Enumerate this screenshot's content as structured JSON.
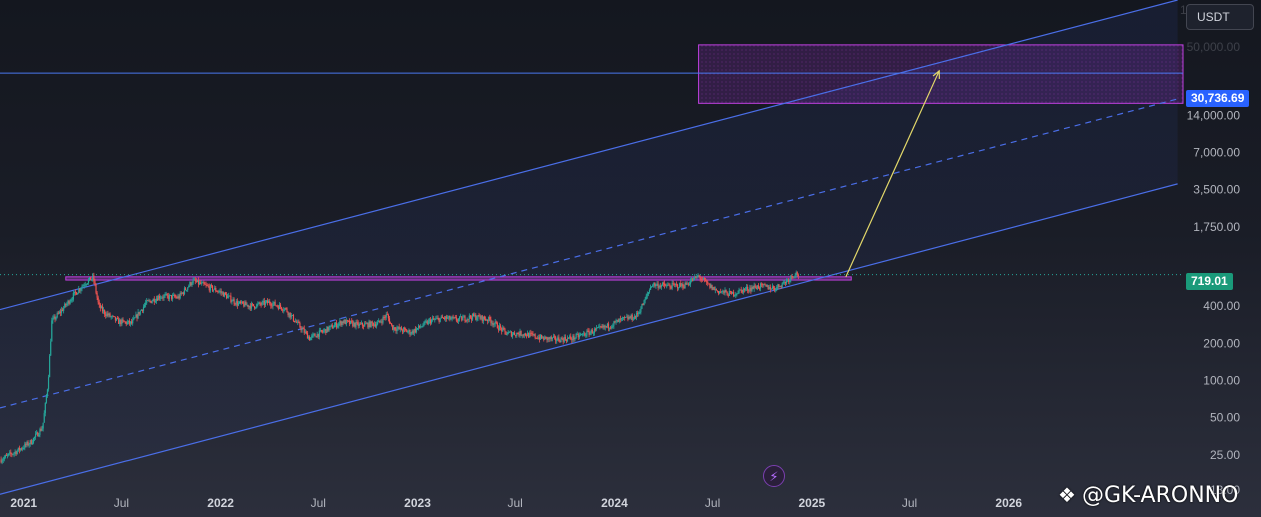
{
  "chart_data": {
    "type": "candlestick",
    "title": "",
    "currency": "USDT",
    "y_scale": "log",
    "ylim": [
      13,
      120000
    ],
    "xlim": [
      "2020-11-18",
      "2026-11-20"
    ],
    "x_tick_labels": [
      {
        "label": "2021",
        "date": "2021-01-01",
        "major": true
      },
      {
        "label": "Jul",
        "date": "2021-07-01",
        "major": false
      },
      {
        "label": "2022",
        "date": "2022-01-01",
        "major": true
      },
      {
        "label": "Jul",
        "date": "2022-07-01",
        "major": false
      },
      {
        "label": "2023",
        "date": "2023-01-01",
        "major": true
      },
      {
        "label": "Jul",
        "date": "2023-07-01",
        "major": false
      },
      {
        "label": "2024",
        "date": "2024-01-01",
        "major": true
      },
      {
        "label": "Jul",
        "date": "2024-07-01",
        "major": false
      },
      {
        "label": "2025",
        "date": "2025-01-01",
        "major": true
      },
      {
        "label": "Jul",
        "date": "2025-07-01",
        "major": false
      },
      {
        "label": "2026",
        "date": "2026-01-01",
        "major": true
      }
    ],
    "y_tick_labels": [
      {
        "label": "100,000.00",
        "value": 100000,
        "faded": true
      },
      {
        "label": "50,000.00",
        "value": 50000,
        "faded": true
      },
      {
        "label": "14,000.00",
        "value": 14000,
        "faded": false
      },
      {
        "label": "7,000.00",
        "value": 7000,
        "faded": false
      },
      {
        "label": "3,500.00",
        "value": 3500,
        "faded": false
      },
      {
        "label": "1,750.00",
        "value": 1750,
        "faded": false
      },
      {
        "label": "400.00",
        "value": 400,
        "faded": false
      },
      {
        "label": "200.00",
        "value": 200,
        "faded": false
      },
      {
        "label": "100.00",
        "value": 100,
        "faded": false
      },
      {
        "label": "50.00",
        "value": 50,
        "faded": false
      },
      {
        "label": "25.00",
        "value": 25,
        "faded": false
      },
      {
        "label": "13.00",
        "value": 13,
        "faded": false
      }
    ],
    "price_path": [
      [
        "2020-11-20",
        23
      ],
      [
        "2020-12-20",
        27
      ],
      [
        "2021-01-15",
        32
      ],
      [
        "2021-02-05",
        42
      ],
      [
        "2021-02-15",
        95
      ],
      [
        "2021-02-22",
        300
      ],
      [
        "2021-03-10",
        360
      ],
      [
        "2021-04-05",
        500
      ],
      [
        "2021-04-25",
        620
      ],
      [
        "2021-05-10",
        680
      ],
      [
        "2021-05-20",
        400
      ],
      [
        "2021-06-01",
        350
      ],
      [
        "2021-06-25",
        300
      ],
      [
        "2021-07-20",
        290
      ],
      [
        "2021-08-15",
        420
      ],
      [
        "2021-09-10",
        480
      ],
      [
        "2021-10-15",
        470
      ],
      [
        "2021-11-10",
        640
      ],
      [
        "2021-12-05",
        580
      ],
      [
        "2022-01-01",
        520
      ],
      [
        "2022-02-01",
        420
      ],
      [
        "2022-03-01",
        400
      ],
      [
        "2022-04-01",
        430
      ],
      [
        "2022-05-01",
        380
      ],
      [
        "2022-05-20",
        300
      ],
      [
        "2022-06-15",
        220
      ],
      [
        "2022-07-10",
        250
      ],
      [
        "2022-08-15",
        300
      ],
      [
        "2022-09-15",
        280
      ],
      [
        "2022-10-20",
        290
      ],
      [
        "2022-11-05",
        340
      ],
      [
        "2022-11-15",
        270
      ],
      [
        "2022-12-20",
        245
      ],
      [
        "2023-01-25",
        305
      ],
      [
        "2023-02-20",
        320
      ],
      [
        "2023-03-15",
        310
      ],
      [
        "2023-04-15",
        330
      ],
      [
        "2023-05-15",
        310
      ],
      [
        "2023-06-15",
        240
      ],
      [
        "2023-07-15",
        240
      ],
      [
        "2023-08-20",
        220
      ],
      [
        "2023-09-15",
        215
      ],
      [
        "2023-10-15",
        220
      ],
      [
        "2023-11-15",
        245
      ],
      [
        "2023-12-15",
        270
      ],
      [
        "2024-01-15",
        310
      ],
      [
        "2024-02-10",
        330
      ],
      [
        "2024-02-25",
        430
      ],
      [
        "2024-03-10",
        600
      ],
      [
        "2024-04-10",
        580
      ],
      [
        "2024-05-10",
        590
      ],
      [
        "2024-06-05",
        700
      ],
      [
        "2024-06-25",
        580
      ],
      [
        "2024-07-10",
        530
      ],
      [
        "2024-08-05",
        500
      ],
      [
        "2024-08-25",
        540
      ],
      [
        "2024-09-25",
        580
      ],
      [
        "2024-10-25",
        560
      ],
      [
        "2024-11-15",
        640
      ],
      [
        "2024-12-01",
        740
      ],
      [
        "2024-12-08",
        719
      ]
    ],
    "channel": {
      "upper": [
        [
          "2020-11-18",
          375
        ],
        [
          "2026-11-10",
          120000
        ]
      ],
      "middle": [
        [
          "2020-11-18",
          60
        ],
        [
          "2026-11-10",
          19000
        ]
      ],
      "lower": [
        [
          "2020-11-18",
          12
        ],
        [
          "2026-11-10",
          3900
        ]
      ]
    },
    "resistance_zone": {
      "from": "2021-03-20",
      "to": "2025-03-15",
      "low": 650,
      "high": 690
    },
    "target_zone": {
      "from": "2024-06-05",
      "to": "2026-11-20",
      "low": 17500,
      "high": 52000
    },
    "target_arrow": {
      "from": [
        "2025-03-05",
        690
      ],
      "to": [
        "2025-08-25",
        32000
      ]
    },
    "horizontal_line": {
      "value": 30736.69
    },
    "current_price": 719.01,
    "colors": {
      "up": "#26a69a",
      "down": "#ef5350",
      "channel": "#4a6ee8",
      "zone": "#c040e0",
      "arrow": "#e3d86a",
      "hline": "#4a78f0",
      "badge_target": "#2962ff",
      "badge_current": "#1a9a7a"
    }
  },
  "ui": {
    "currency_label": "USDT",
    "target_price_label": "30,736.69",
    "current_price_label": "719.01",
    "watermark_text": "@GK-ARONNO",
    "flash_icon": "⚡"
  }
}
